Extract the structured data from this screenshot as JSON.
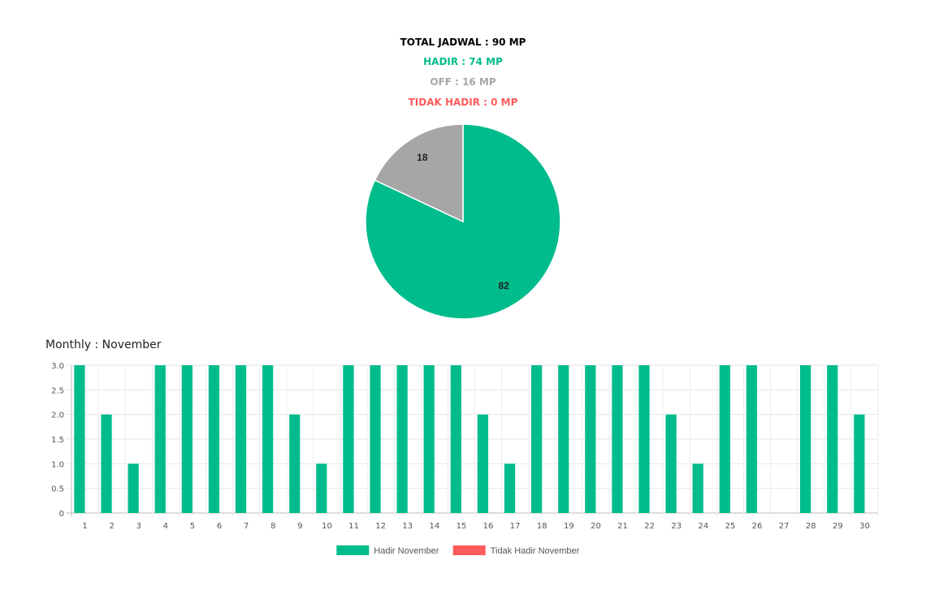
{
  "summary": {
    "total": "TOTAL JADWAL : 90 MP",
    "hadir": "HADIR : 74 MP",
    "off": "OFF : 16 MP",
    "tidak_hadir": "TIDAK HADIR : 0 MP"
  },
  "colors": {
    "hadir": "#00bc8c",
    "off": "#a6a6a6",
    "tidak_hadir": "#ff5b5b",
    "total": "#000000"
  },
  "monthly_title": "Monthly : November",
  "chart_data": [
    {
      "type": "pie",
      "slices": [
        {
          "label": "82",
          "value": 82,
          "color": "#00bc8c"
        },
        {
          "label": "18",
          "value": 18,
          "color": "#a6a6a6"
        }
      ]
    },
    {
      "type": "bar",
      "categories": [
        "1",
        "2",
        "3",
        "4",
        "5",
        "6",
        "7",
        "8",
        "9",
        "10",
        "11",
        "12",
        "13",
        "14",
        "15",
        "16",
        "17",
        "18",
        "19",
        "20",
        "21",
        "22",
        "23",
        "24",
        "25",
        "26",
        "27",
        "28",
        "29",
        "30"
      ],
      "series": [
        {
          "name": "Hadir November",
          "color": "#00bc8c",
          "values": [
            3,
            2,
            1,
            3,
            3,
            3,
            3,
            3,
            2,
            1,
            3,
            3,
            3,
            3,
            3,
            2,
            1,
            3,
            3,
            3,
            3,
            3,
            2,
            1,
            3,
            3,
            0,
            3,
            3,
            2
          ]
        },
        {
          "name": "Tidak Hadir November",
          "color": "#ff5b5b",
          "values": [
            0,
            0,
            0,
            0,
            0,
            0,
            0,
            0,
            0,
            0,
            0,
            0,
            0,
            0,
            0,
            0,
            0,
            0,
            0,
            0,
            0,
            0,
            0,
            0,
            0,
            0,
            0,
            0,
            0,
            0
          ]
        }
      ],
      "yticks": [
        "0",
        "0.5",
        "1.0",
        "1.5",
        "2.0",
        "2.5",
        "3.0"
      ],
      "ylim": [
        0,
        3
      ],
      "grid": true,
      "legend": "bottom"
    }
  ]
}
